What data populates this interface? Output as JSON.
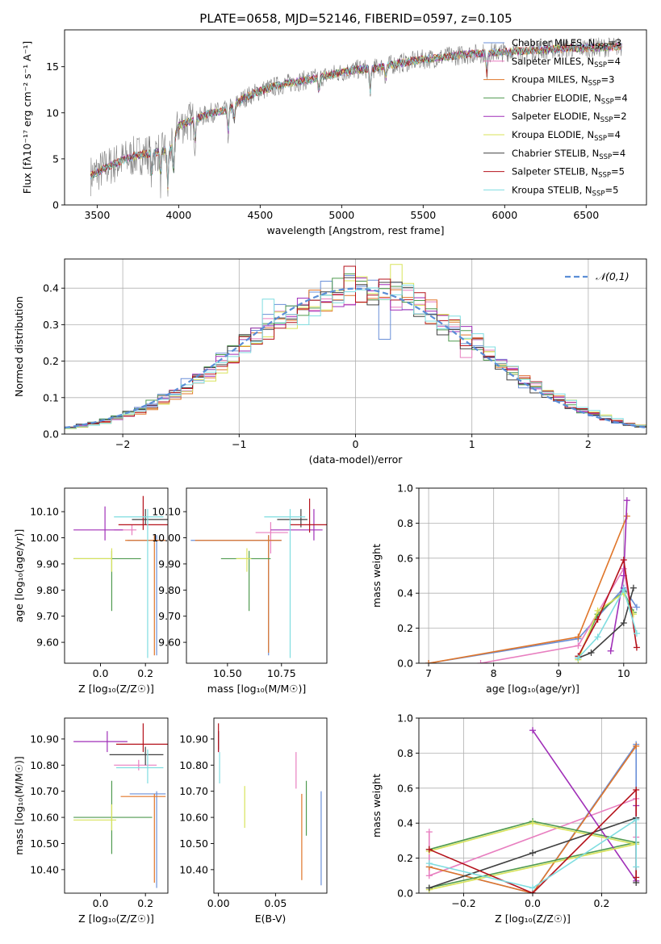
{
  "figure_title": "PLATE=0658, MJD=52146, FIBERID=0597, z=0.105",
  "models": [
    {
      "name": "Chabrier MILES",
      "nssp": "3",
      "color": "#6a8fd8"
    },
    {
      "name": "Salpeter MILES",
      "nssp": "4",
      "color": "#e87fc0"
    },
    {
      "name": "Kroupa MILES",
      "nssp": "3",
      "color": "#e0762a"
    },
    {
      "name": "Chabrier ELODIE",
      "nssp": "4",
      "color": "#4f9a4f"
    },
    {
      "name": "Salpeter ELODIE",
      "nssp": "2",
      "color": "#a02fb8"
    },
    {
      "name": "Kroupa ELODIE",
      "nssp": "4",
      "color": "#d8e35a"
    },
    {
      "name": "Chabrier STELIB",
      "nssp": "4",
      "color": "#404040"
    },
    {
      "name": "Salpeter STELIB",
      "nssp": "5",
      "color": "#b5121b"
    },
    {
      "name": "Kroupa STELIB",
      "nssp": "5",
      "color": "#7fdde0"
    }
  ],
  "chart_data": [
    {
      "id": "spectrum",
      "type": "line",
      "xlabel": "wavelength [Angstrom, rest frame]",
      "ylabel": "Flux [fλ10⁻¹⁷ erg cm⁻² s⁻¹ A⁻¹]",
      "xlim": [
        3300,
        6870
      ],
      "ylim": [
        0,
        19
      ],
      "xticks": [
        3500,
        4000,
        4500,
        5000,
        5500,
        6000,
        6500
      ],
      "yticks": [
        0,
        5,
        10,
        15
      ],
      "legend": "right",
      "data_color": "#808080",
      "continuum": [
        [
          3460,
          3.2
        ],
        [
          3550,
          4.0
        ],
        [
          3650,
          4.8
        ],
        [
          3750,
          5.4
        ],
        [
          3850,
          5.7
        ],
        [
          3950,
          6.0
        ],
        [
          4000,
          8.6
        ],
        [
          4100,
          9.3
        ],
        [
          4200,
          10.0
        ],
        [
          4300,
          10.3
        ],
        [
          4400,
          11.6
        ],
        [
          4500,
          12.4
        ],
        [
          4600,
          12.9
        ],
        [
          4700,
          13.3
        ],
        [
          4800,
          13.6
        ],
        [
          4900,
          14.0
        ],
        [
          5000,
          14.4
        ],
        [
          5100,
          14.7
        ],
        [
          5200,
          14.8
        ],
        [
          5300,
          15.2
        ],
        [
          5400,
          15.5
        ],
        [
          5500,
          15.8
        ],
        [
          5600,
          16.0
        ],
        [
          5700,
          16.2
        ],
        [
          5800,
          16.4
        ],
        [
          5900,
          16.5
        ],
        [
          6000,
          16.6
        ],
        [
          6200,
          16.8
        ],
        [
          6400,
          17.0
        ],
        [
          6600,
          17.1
        ],
        [
          6720,
          17.2
        ]
      ],
      "absorption_lines": [
        [
          3835,
          3.0
        ],
        [
          3889,
          3.0
        ],
        [
          3933,
          4.5
        ],
        [
          3968,
          4.0
        ],
        [
          4101,
          2.5
        ],
        [
          4304,
          2.8
        ],
        [
          4340,
          2.0
        ],
        [
          4861,
          1.8
        ],
        [
          5175,
          3.0
        ],
        [
          5270,
          1.5
        ],
        [
          5890,
          2.5
        ]
      ]
    },
    {
      "id": "residuals",
      "type": "histogram",
      "xlabel": "(data-model)/error",
      "ylabel": "Normed distribution",
      "xlim": [
        -2.5,
        2.5
      ],
      "ylim": [
        0,
        0.48
      ],
      "xticks": [
        -2,
        -1,
        0,
        1,
        2
      ],
      "yticks": [
        0.0,
        0.1,
        0.2,
        0.3,
        0.4
      ],
      "bin_width": 0.1,
      "grid": true,
      "legend": "top-right",
      "curve_label": "𝒩(0,1)",
      "curve_color": "#5b8ed6",
      "highlights": [
        {
          "x": -0.05,
          "y": 0.46,
          "model": 7
        },
        {
          "x": 0.35,
          "y": 0.465,
          "model": 5
        },
        {
          "x": -0.75,
          "y": 0.37,
          "model": 8
        },
        {
          "x": -0.45,
          "y": 0.3,
          "model": 8
        },
        {
          "x": 0.25,
          "y": 0.26,
          "model": 0
        },
        {
          "x": 0.95,
          "y": 0.21,
          "model": 1
        },
        {
          "x": 1.45,
          "y": 0.16,
          "model": 2
        }
      ]
    },
    {
      "id": "age_vs_Z",
      "type": "errorbar",
      "xlabel": "Z [log₁₀(Z/Z☉)]",
      "ylabel": "age  [log₁₀(age/yr)]",
      "xlim": [
        -0.16,
        0.3
      ],
      "ylim": [
        9.52,
        10.19
      ],
      "xticks": [
        0.0,
        0.2
      ],
      "yticks": [
        9.6,
        9.7,
        9.8,
        9.9,
        10.0,
        10.1
      ],
      "points": [
        {
          "model": 0,
          "x": 0.25,
          "y": 9.99,
          "xerr": [
            0.13,
            0.04
          ],
          "yerr": [
            0.44,
            0.02
          ]
        },
        {
          "model": 1,
          "x": 0.14,
          "y": 10.03,
          "xerr": [
            0.08,
            0.02
          ],
          "yerr": [
            0.02,
            0.02
          ]
        },
        {
          "model": 2,
          "x": 0.24,
          "y": 9.99,
          "xerr": [
            0.13,
            0.05
          ],
          "yerr": [
            0.44,
            0.02
          ]
        },
        {
          "model": 3,
          "x": 0.05,
          "y": 9.92,
          "xerr": [
            0.17,
            0.13
          ],
          "yerr": [
            0.2,
            0.03
          ]
        },
        {
          "model": 4,
          "x": 0.02,
          "y": 10.03,
          "xerr": [
            0.14,
            0.08
          ],
          "yerr": [
            0.04,
            0.09
          ]
        },
        {
          "model": 5,
          "x": 0.05,
          "y": 9.92,
          "xerr": [
            0.17,
            0.0
          ],
          "yerr": [
            0.05,
            0.04
          ]
        },
        {
          "model": 6,
          "x": 0.2,
          "y": 10.07,
          "xerr": [
            0.06,
            0.1
          ],
          "yerr": [
            0.02,
            0.04
          ]
        },
        {
          "model": 7,
          "x": 0.19,
          "y": 10.05,
          "xerr": [
            0.11,
            0.11
          ],
          "yerr": [
            0.02,
            0.11
          ]
        },
        {
          "model": 8,
          "x": 0.21,
          "y": 10.08,
          "xerr": [
            0.15,
            0.07
          ],
          "yerr": [
            0.54,
            0.03
          ]
        }
      ]
    },
    {
      "id": "age_vs_mass",
      "type": "errorbar",
      "xlabel": "mass [log₁₀(M/M☉)]",
      "ylabel": "",
      "xlim": [
        10.31,
        10.96
      ],
      "ylim": [
        9.52,
        10.19
      ],
      "xticks": [
        10.5,
        10.75
      ],
      "yticks": [
        9.6,
        9.7,
        9.8,
        9.9,
        10.0,
        10.1
      ],
      "points": [
        {
          "model": 0,
          "x": 10.69,
          "y": 9.99,
          "xerr": [
            0.36,
            0.06
          ],
          "yerr": [
            0.44,
            0.02
          ]
        },
        {
          "model": 1,
          "x": 10.7,
          "y": 10.02,
          "xerr": [
            0.07,
            0.08
          ],
          "yerr": [
            0.08,
            0.04
          ]
        },
        {
          "model": 2,
          "x": 10.69,
          "y": 9.99,
          "xerr": [
            0.34,
            0.06
          ],
          "yerr": [
            0.43,
            0.02
          ]
        },
        {
          "model": 3,
          "x": 10.6,
          "y": 9.92,
          "xerr": [
            0.13,
            0.1
          ],
          "yerr": [
            0.2,
            0.03
          ]
        },
        {
          "model": 4,
          "x": 10.9,
          "y": 10.03,
          "xerr": [
            0.2,
            0.04
          ],
          "yerr": [
            0.04,
            0.08
          ]
        },
        {
          "model": 5,
          "x": 10.59,
          "y": 9.92,
          "xerr": [
            0.05,
            0.02
          ],
          "yerr": [
            0.05,
            0.04
          ]
        },
        {
          "model": 6,
          "x": 10.84,
          "y": 10.07,
          "xerr": [
            0.11,
            0.03
          ],
          "yerr": [
            0.03,
            0.04
          ]
        },
        {
          "model": 7,
          "x": 10.88,
          "y": 10.05,
          "xerr": [
            0.09,
            0.08
          ],
          "yerr": [
            0.03,
            0.1
          ]
        },
        {
          "model": 8,
          "x": 10.79,
          "y": 10.08,
          "xerr": [
            0.12,
            0.07
          ],
          "yerr": [
            0.54,
            0.03
          ]
        }
      ]
    },
    {
      "id": "mass_weight_vs_age",
      "type": "line",
      "xlabel": "age  [log₁₀(age/yr)]",
      "ylabel": "mass weight",
      "xlim": [
        6.85,
        10.35
      ],
      "ylim": [
        0,
        1.0
      ],
      "xticks": [
        7,
        8,
        9,
        10
      ],
      "yticks": [
        0.0,
        0.2,
        0.4,
        0.6,
        0.8,
        1.0
      ],
      "grid": true,
      "series": [
        {
          "model": 0,
          "x": [
            7.0,
            9.3,
            10.0,
            10.2
          ],
          "y": [
            0.0,
            0.14,
            0.43,
            0.32
          ]
        },
        {
          "model": 1,
          "x": [
            7.8,
            9.3,
            10.0,
            10.1
          ],
          "y": [
            0.0,
            0.1,
            0.54,
            0.32
          ]
        },
        {
          "model": 2,
          "x": [
            7.0,
            9.3,
            10.05
          ],
          "y": [
            0.0,
            0.15,
            0.84
          ]
        },
        {
          "model": 3,
          "x": [
            9.3,
            9.6,
            10.0,
            10.15
          ],
          "y": [
            0.03,
            0.28,
            0.41,
            0.29
          ]
        },
        {
          "model": 4,
          "x": [
            9.8,
            10.0,
            10.05
          ],
          "y": [
            0.07,
            0.5,
            0.93
          ]
        },
        {
          "model": 5,
          "x": [
            9.3,
            9.6,
            10.0,
            10.15
          ],
          "y": [
            0.02,
            0.3,
            0.4,
            0.28
          ]
        },
        {
          "model": 6,
          "x": [
            9.3,
            9.5,
            10.0,
            10.15
          ],
          "y": [
            0.03,
            0.06,
            0.23,
            0.43
          ]
        },
        {
          "model": 7,
          "x": [
            9.3,
            9.6,
            10.0,
            10.2
          ],
          "y": [
            0.04,
            0.25,
            0.59,
            0.09
          ]
        },
        {
          "model": 8,
          "x": [
            9.3,
            9.6,
            10.0,
            10.2
          ],
          "y": [
            0.03,
            0.15,
            0.42,
            0.17
          ]
        }
      ]
    },
    {
      "id": "mass_vs_Z",
      "type": "errorbar",
      "xlabel": "Z [log₁₀(Z/Z☉)]",
      "ylabel": "mass [log₁₀(M/M☉)]",
      "xlim": [
        -0.16,
        0.3
      ],
      "ylim": [
        10.31,
        10.98
      ],
      "xticks": [
        0.0,
        0.2
      ],
      "yticks": [
        10.4,
        10.5,
        10.6,
        10.7,
        10.8,
        10.9
      ],
      "points": [
        {
          "model": 0,
          "x": 0.25,
          "y": 10.69,
          "xerr": [
            0.12,
            0.04
          ],
          "yerr": [
            0.36,
            0.01
          ]
        },
        {
          "model": 1,
          "x": 0.17,
          "y": 10.8,
          "xerr": [
            0.11,
            0.08
          ],
          "yerr": [
            0.02,
            0.02
          ]
        },
        {
          "model": 2,
          "x": 0.24,
          "y": 10.68,
          "xerr": [
            0.15,
            0.05
          ],
          "yerr": [
            0.33,
            0.01
          ]
        },
        {
          "model": 3,
          "x": 0.05,
          "y": 10.6,
          "xerr": [
            0.17,
            0.18
          ],
          "yerr": [
            0.14,
            0.14
          ]
        },
        {
          "model": 4,
          "x": 0.03,
          "y": 10.89,
          "xerr": [
            0.15,
            0.09
          ],
          "yerr": [
            0.04,
            0.04
          ]
        },
        {
          "model": 5,
          "x": 0.05,
          "y": 10.59,
          "xerr": [
            0.17,
            0.02
          ],
          "yerr": [
            0.04,
            0.06
          ]
        },
        {
          "model": 6,
          "x": 0.2,
          "y": 10.84,
          "xerr": [
            0.16,
            0.08
          ],
          "yerr": [
            0.04,
            0.03
          ]
        },
        {
          "model": 7,
          "x": 0.19,
          "y": 10.88,
          "xerr": [
            0.12,
            0.11
          ],
          "yerr": [
            0.03,
            0.08
          ]
        },
        {
          "model": 8,
          "x": 0.21,
          "y": 10.79,
          "xerr": [
            0.14,
            0.07
          ],
          "yerr": [
            0.06,
            0.07
          ]
        }
      ]
    },
    {
      "id": "mass_vs_ebv",
      "type": "errorbar",
      "xlabel": "E(B-V)",
      "ylabel": "",
      "xlim": [
        -0.004,
        0.095
      ],
      "ylim": [
        10.31,
        10.98
      ],
      "xticks": [
        0.0,
        0.05
      ],
      "yticks": [
        10.4,
        10.5,
        10.6,
        10.7,
        10.8,
        10.9
      ],
      "points": [
        {
          "model": 0,
          "x": 0.09,
          "y": 10.52,
          "xerr": [
            0,
            0
          ],
          "yerr": [
            0.18,
            0.18
          ]
        },
        {
          "model": 1,
          "x": 0.068,
          "y": 10.75,
          "xerr": [
            0,
            0
          ],
          "yerr": [
            0.04,
            0.1
          ]
        },
        {
          "model": 2,
          "x": 0.073,
          "y": 10.52,
          "xerr": [
            0,
            0
          ],
          "yerr": [
            0.16,
            0.17
          ]
        },
        {
          "model": 3,
          "x": 0.077,
          "y": 10.62,
          "xerr": [
            0,
            0
          ],
          "yerr": [
            0.09,
            0.12
          ]
        },
        {
          "model": 4,
          "x": 0.0,
          "y": 10.89,
          "xerr": [
            0,
            0
          ],
          "yerr": [
            0.04,
            0.04
          ]
        },
        {
          "model": 5,
          "x": 0.023,
          "y": 10.64,
          "xerr": [
            0,
            0
          ],
          "yerr": [
            0.08,
            0.08
          ]
        },
        {
          "model": 6,
          "x": 0.0,
          "y": 10.9,
          "xerr": [
            0,
            0
          ],
          "yerr": [
            0.04,
            0.03
          ]
        },
        {
          "model": 7,
          "x": 0.0,
          "y": 10.88,
          "xerr": [
            0,
            0
          ],
          "yerr": [
            0.03,
            0.08
          ]
        },
        {
          "model": 8,
          "x": 0.001,
          "y": 10.79,
          "xerr": [
            0,
            0
          ],
          "yerr": [
            0.06,
            0.06
          ]
        }
      ]
    },
    {
      "id": "mass_weight_vs_Z",
      "type": "line",
      "xlabel": "Z [log₁₀(Z/Z☉)]",
      "ylabel": "mass weight",
      "xlim": [
        -0.33,
        0.33
      ],
      "ylim": [
        0,
        1.0
      ],
      "xticks": [
        -0.2,
        0.0,
        0.2
      ],
      "yticks": [
        0.0,
        0.2,
        0.4,
        0.6,
        0.8,
        1.0
      ],
      "grid": true,
      "series": [
        {
          "model": 0,
          "x": [
            -0.3,
            0.0,
            0.3,
            0.3
          ],
          "y": [
            0.15,
            0.0,
            0.85,
            0.43
          ]
        },
        {
          "model": 1,
          "x": [
            -0.3,
            -0.3,
            0.3,
            0.3
          ],
          "y": [
            0.35,
            0.1,
            0.54,
            0.32
          ]
        },
        {
          "model": 2,
          "x": [
            -0.3,
            0.0,
            0.3
          ],
          "y": [
            0.15,
            0.0,
            0.84
          ]
        },
        {
          "model": 3,
          "x": [
            -0.3,
            0.0,
            0.3,
            -0.3
          ],
          "y": [
            0.25,
            0.41,
            0.29,
            0.03
          ]
        },
        {
          "model": 4,
          "x": [
            0.0,
            0.3,
            0.3
          ],
          "y": [
            0.93,
            0.07,
            0.5
          ]
        },
        {
          "model": 5,
          "x": [
            -0.3,
            0.0,
            0.3,
            -0.3
          ],
          "y": [
            0.24,
            0.4,
            0.28,
            0.02
          ]
        },
        {
          "model": 6,
          "x": [
            -0.3,
            0.0,
            0.3,
            0.3
          ],
          "y": [
            0.03,
            0.23,
            0.43,
            0.06
          ]
        },
        {
          "model": 7,
          "x": [
            -0.3,
            0.0,
            0.3,
            0.3
          ],
          "y": [
            0.25,
            0.0,
            0.59,
            0.09
          ]
        },
        {
          "model": 8,
          "x": [
            -0.3,
            0.0,
            0.3,
            0.3
          ],
          "y": [
            0.17,
            0.03,
            0.42,
            0.15
          ]
        }
      ]
    }
  ]
}
